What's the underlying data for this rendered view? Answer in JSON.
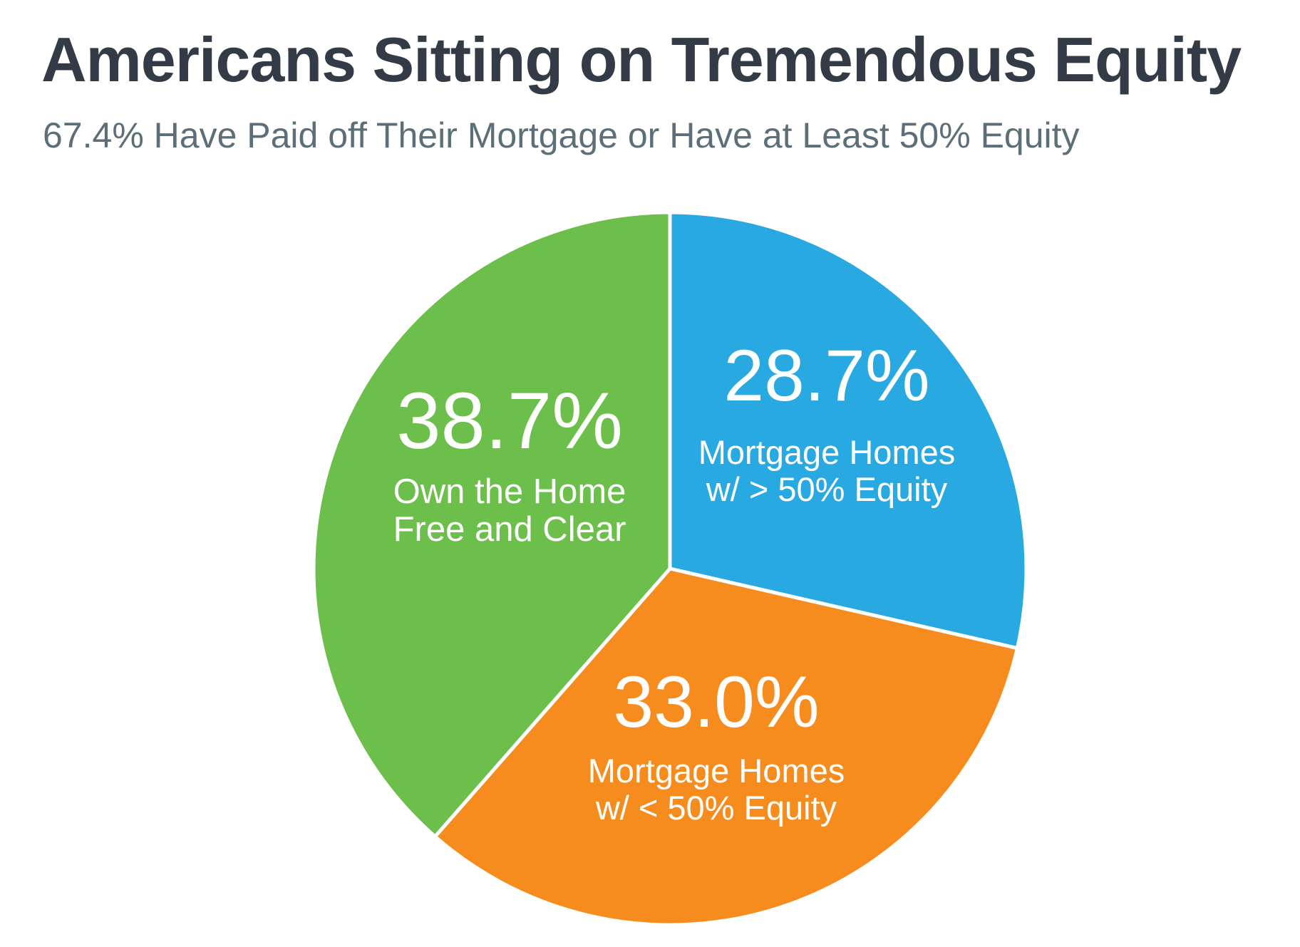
{
  "chart_data": {
    "type": "pie",
    "title": "Americans Sitting on Tremendous Equity",
    "subtitle": "67.4% Have Paid off Their Mortgage or Have at Least 50% Equity",
    "title_color": "#333b46",
    "subtitle_color": "#5c6f79",
    "background_color": "#ffffff",
    "label_text_color": "#ffffff",
    "separator_color": "#ffffff",
    "start_angle": "12 o'clock",
    "direction": "clockwise",
    "labels_inside": true,
    "legend": "none",
    "slices": [
      {
        "id": "gt50",
        "value": 28.7,
        "value_label": "28.7%",
        "label": "Mortgage Homes w/ > 50% Equity",
        "label_line1": "Mortgage Homes",
        "label_line2": "w/ > 50% Equity",
        "color": "#29a9e1"
      },
      {
        "id": "lt50",
        "value": 33.0,
        "value_label": "33.0%",
        "label": "Mortgage Homes w/ < 50% Equity",
        "label_line1": "Mortgage Homes",
        "label_line2": "w/ < 50% Equity",
        "color": "#f78c1e"
      },
      {
        "id": "free",
        "value": 38.7,
        "value_label": "38.7%",
        "label": "Own the Home Free and Clear",
        "label_line1": "Own the Home",
        "label_line2": "Free and Clear",
        "color": "#6cbf4b"
      }
    ]
  }
}
